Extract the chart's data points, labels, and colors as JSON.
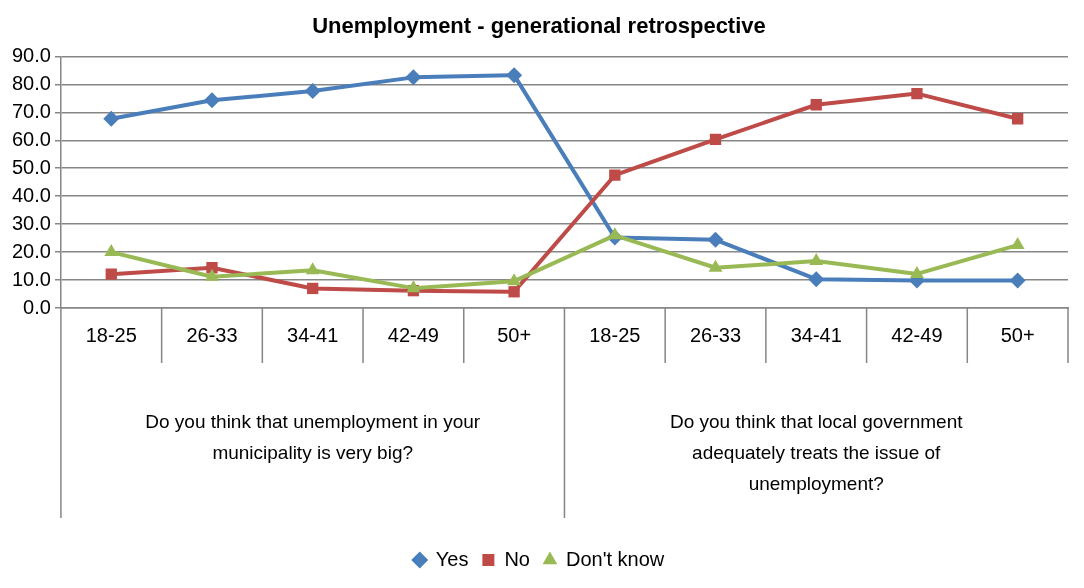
{
  "chart_data": {
    "type": "line",
    "title": "Unemployment - generational retrospective",
    "categories": [
      "18-25",
      "26-33",
      "34-41",
      "42-49",
      "50+",
      "18-25",
      "26-33",
      "34-41",
      "42-49",
      "50+"
    ],
    "series": [
      {
        "name": "Yes",
        "color": "#4a7ebb",
        "marker": "diamond",
        "values": [
          67.7,
          74.3,
          77.6,
          82.5,
          83.3,
          25.2,
          24.4,
          10.3,
          9.8,
          9.8
        ]
      },
      {
        "name": "No",
        "color": "#be4b48",
        "marker": "square",
        "values": [
          12.1,
          14.4,
          7.0,
          6.2,
          5.8,
          47.5,
          60.3,
          72.7,
          76.7,
          67.7
        ]
      },
      {
        "name": "Don't know",
        "color": "#98b954",
        "marker": "triangle",
        "values": [
          20.0,
          11.2,
          13.5,
          7.1,
          9.6,
          26.0,
          14.4,
          16.8,
          12.2,
          22.5
        ]
      }
    ],
    "annotations": [
      "Do you think that unemployment in your municipality is very big?",
      "Do you think that local government adequately treats the issue of unemployment?"
    ],
    "ylim": [
      0,
      90
    ],
    "yticks": [
      {
        "value": 0,
        "label": "0.0"
      },
      {
        "value": 10,
        "label": "10.0"
      },
      {
        "value": 20,
        "label": "20.0"
      },
      {
        "value": 30,
        "label": "30.0"
      },
      {
        "value": 40,
        "label": "40.0"
      },
      {
        "value": 50,
        "label": "50.0"
      },
      {
        "value": 60,
        "label": "60.0"
      },
      {
        "value": 70,
        "label": "70.0"
      },
      {
        "value": 80,
        "label": "80.0"
      },
      {
        "value": 90,
        "label": "90.0"
      }
    ],
    "grid": "y",
    "legend": "bottom",
    "line_style": "solid"
  }
}
